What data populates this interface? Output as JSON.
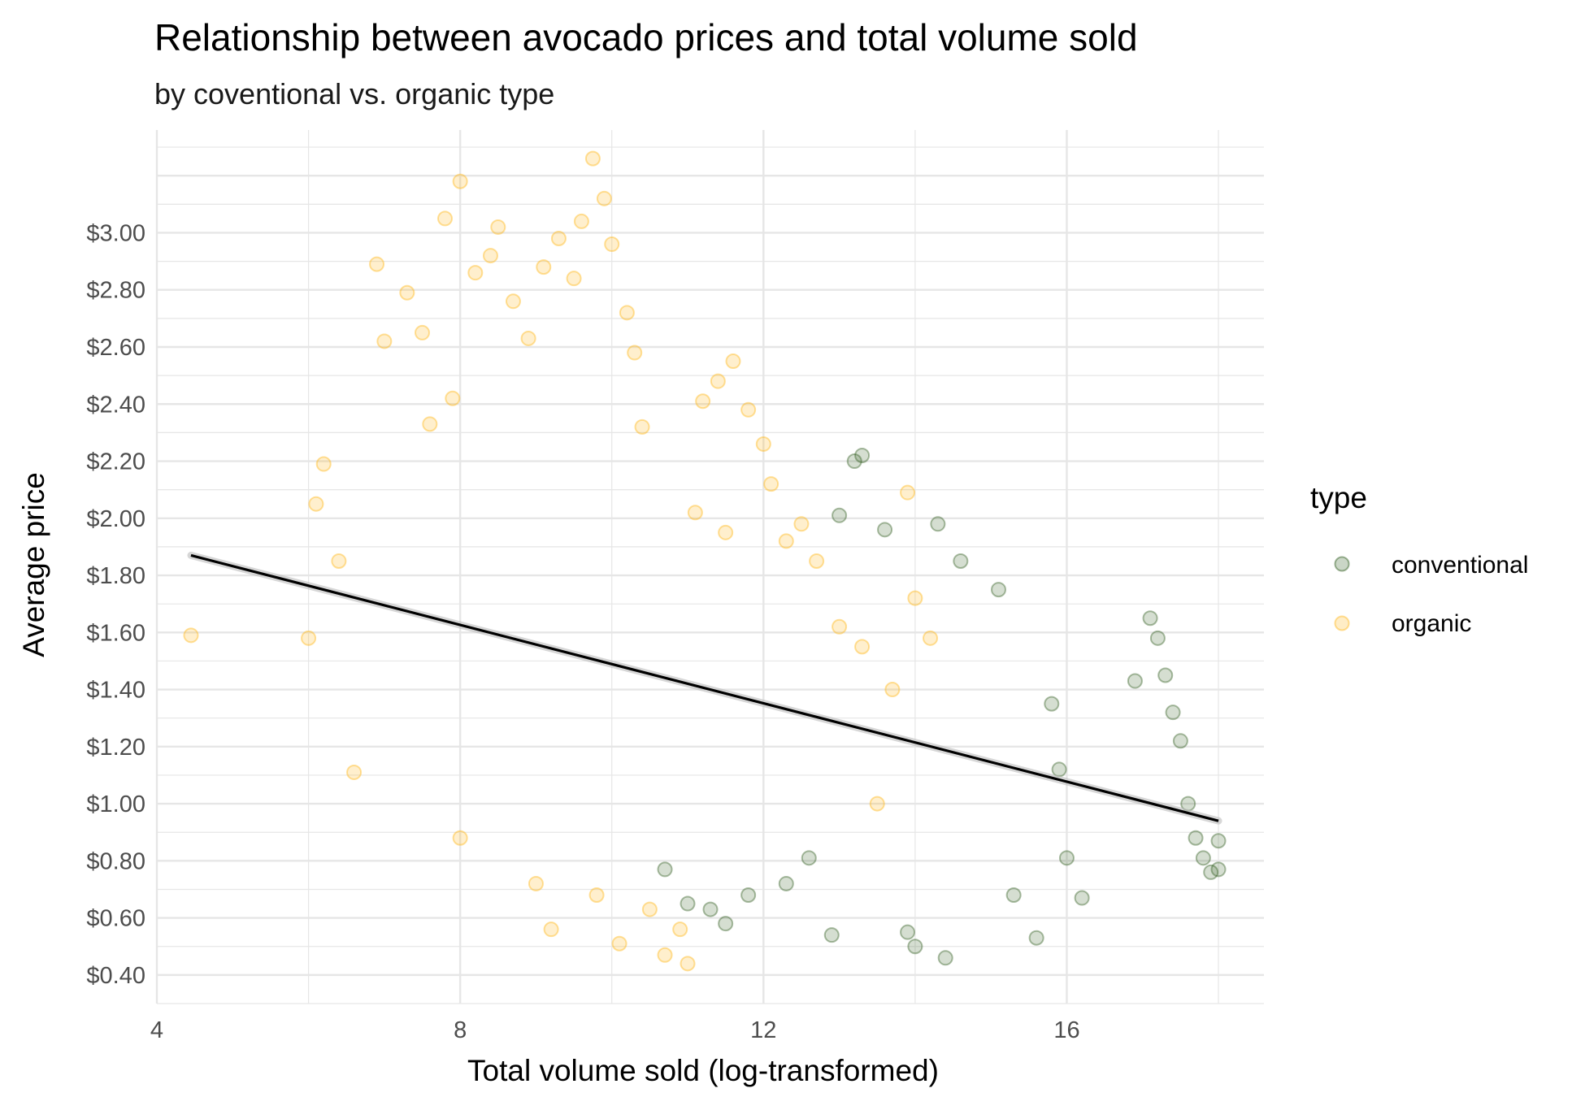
{
  "chart_data": {
    "type": "scatter",
    "title": "Relationship between avocado prices and total volume sold",
    "subtitle": "by coventional vs. organic type",
    "xlabel": "Total volume sold (log-transformed)",
    "ylabel": "Average price",
    "xlim": [
      4.0,
      18.6
    ],
    "ylim": [
      0.3,
      3.36
    ],
    "x_ticks": [
      4,
      8,
      12,
      16
    ],
    "x_tick_labels": [
      "4",
      "8",
      "12",
      "16"
    ],
    "y_ticks": [
      0.4,
      0.6,
      0.8,
      1.0,
      1.2,
      1.4,
      1.6,
      1.8,
      2.0,
      2.2,
      2.4,
      2.6,
      2.8,
      3.0
    ],
    "y_tick_labels": [
      "$0.40",
      "$0.60",
      "$0.80",
      "$1.00",
      "$1.20",
      "$1.40",
      "$1.60",
      "$1.80",
      "$2.00",
      "$2.20",
      "$2.40",
      "$2.60",
      "$2.80",
      "$3.00"
    ],
    "grid": true,
    "legend": {
      "title": "type",
      "position": "right",
      "entries": [
        {
          "name": "conventional",
          "color": "#2d5a1b"
        },
        {
          "name": "organic",
          "color": "#ffb81c"
        }
      ]
    },
    "series": [
      {
        "name": "organic",
        "color": "#ffb81c",
        "opacity": 0.22,
        "points": [
          [
            4.45,
            1.59
          ],
          [
            6.0,
            1.58
          ],
          [
            6.1,
            2.05
          ],
          [
            6.2,
            2.19
          ],
          [
            6.4,
            1.85
          ],
          [
            6.6,
            1.11
          ],
          [
            6.9,
            2.89
          ],
          [
            7.0,
            2.62
          ],
          [
            7.3,
            2.79
          ],
          [
            7.5,
            2.65
          ],
          [
            7.6,
            2.33
          ],
          [
            7.8,
            3.05
          ],
          [
            7.9,
            2.42
          ],
          [
            8.0,
            0.88
          ],
          [
            8.0,
            3.18
          ],
          [
            8.2,
            2.86
          ],
          [
            8.4,
            2.92
          ],
          [
            8.5,
            3.02
          ],
          [
            8.7,
            2.76
          ],
          [
            8.9,
            2.63
          ],
          [
            9.0,
            0.72
          ],
          [
            9.1,
            2.88
          ],
          [
            9.2,
            0.56
          ],
          [
            9.3,
            2.98
          ],
          [
            9.5,
            2.84
          ],
          [
            9.6,
            3.04
          ],
          [
            9.8,
            0.68
          ],
          [
            9.9,
            3.12
          ],
          [
            10.0,
            2.96
          ],
          [
            10.1,
            0.51
          ],
          [
            10.2,
            2.72
          ],
          [
            10.3,
            2.58
          ],
          [
            10.5,
            0.63
          ],
          [
            10.7,
            0.47
          ],
          [
            10.9,
            0.56
          ],
          [
            11.0,
            0.44
          ],
          [
            11.2,
            2.41
          ],
          [
            11.4,
            2.48
          ],
          [
            11.6,
            2.55
          ],
          [
            11.8,
            2.38
          ],
          [
            12.0,
            2.26
          ],
          [
            12.1,
            2.12
          ],
          [
            12.3,
            1.92
          ],
          [
            12.5,
            1.98
          ],
          [
            12.7,
            1.85
          ],
          [
            13.0,
            1.62
          ],
          [
            13.3,
            1.55
          ],
          [
            13.5,
            1.0
          ],
          [
            13.7,
            1.4
          ],
          [
            13.9,
            2.09
          ],
          [
            14.0,
            1.72
          ],
          [
            14.2,
            1.58
          ],
          [
            9.75,
            3.26
          ],
          [
            10.4,
            2.32
          ],
          [
            11.5,
            1.95
          ],
          [
            11.1,
            2.02
          ]
        ]
      },
      {
        "name": "conventional",
        "color": "#2d5a1b",
        "opacity": 0.2,
        "points": [
          [
            10.7,
            0.77
          ],
          [
            11.0,
            0.65
          ],
          [
            11.3,
            0.63
          ],
          [
            11.5,
            0.58
          ],
          [
            11.8,
            0.68
          ],
          [
            12.3,
            0.72
          ],
          [
            12.6,
            0.81
          ],
          [
            12.9,
            0.54
          ],
          [
            13.0,
            2.01
          ],
          [
            13.2,
            2.2
          ],
          [
            13.3,
            2.22
          ],
          [
            13.6,
            1.96
          ],
          [
            13.9,
            0.55
          ],
          [
            14.0,
            0.5
          ],
          [
            14.3,
            1.98
          ],
          [
            14.4,
            0.46
          ],
          [
            14.6,
            1.85
          ],
          [
            15.1,
            1.75
          ],
          [
            15.3,
            0.68
          ],
          [
            15.6,
            0.53
          ],
          [
            15.8,
            1.35
          ],
          [
            15.9,
            1.12
          ],
          [
            16.0,
            0.81
          ],
          [
            16.2,
            0.67
          ],
          [
            16.9,
            1.43
          ],
          [
            17.1,
            1.65
          ],
          [
            17.2,
            1.58
          ],
          [
            17.3,
            1.45
          ],
          [
            17.4,
            1.32
          ],
          [
            17.5,
            1.22
          ],
          [
            17.6,
            1.0
          ],
          [
            17.7,
            0.88
          ],
          [
            17.8,
            0.81
          ],
          [
            17.9,
            0.76
          ],
          [
            18.0,
            0.77
          ],
          [
            18.0,
            0.87
          ]
        ]
      }
    ],
    "trend_line": {
      "x": [
        4.45,
        18.0
      ],
      "y": [
        1.87,
        0.94
      ],
      "color": "#000000"
    }
  }
}
